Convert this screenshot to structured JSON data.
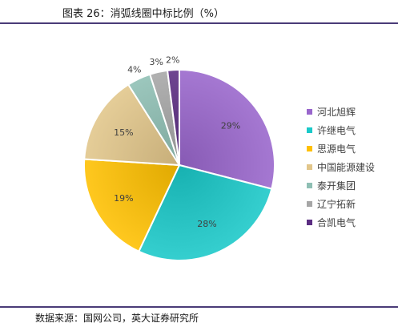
{
  "title": "图表 26：消弧线圈中标比例（%）",
  "source": "数据来源：国网公司，英大证券研究所",
  "chart_data": {
    "type": "pie",
    "slices": [
      {
        "name": "河北旭辉",
        "value": 29,
        "label": "29%",
        "color": "#9966CC"
      },
      {
        "name": "许继电气",
        "value": 28,
        "label": "28%",
        "color": "#1AC9C9"
      },
      {
        "name": "思源电气",
        "value": 19,
        "label": "19%",
        "color": "#FFC000"
      },
      {
        "name": "中国能源建设",
        "value": 15,
        "label": "15%",
        "color": "#E2C68A"
      },
      {
        "name": "泰开集团",
        "value": 4,
        "label": "4%",
        "color": "#8FBFB4"
      },
      {
        "name": "辽宁拓新",
        "value": 3,
        "label": "3%",
        "color": "#A6A6A6"
      },
      {
        "name": "合凯电气",
        "value": 2,
        "label": "2%",
        "color": "#5B2D82"
      }
    ],
    "legend_position": "right"
  }
}
